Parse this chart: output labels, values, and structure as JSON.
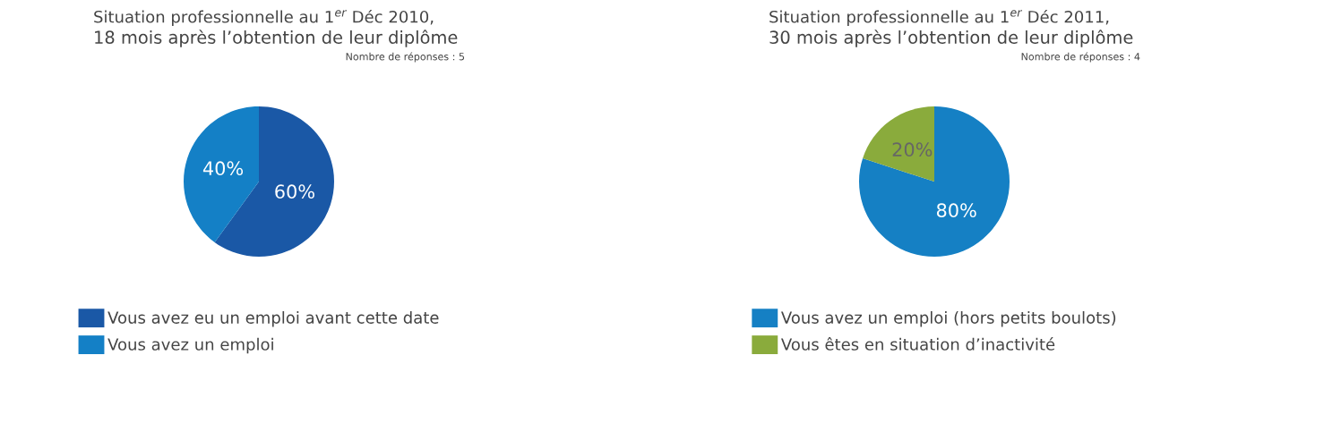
{
  "chart_data": [
    {
      "type": "pie",
      "title": "Situation professionnelle au 1$^{er}$ Déc 2010,",
      "subtitle": "18 mois après l’obtention de leur diplôme",
      "annotations": [
        "Nombre de réponses : 5"
      ],
      "categories": [
        "Vous avez eu un emploi avant cette date",
        "Vous avez un emploi"
      ],
      "values": [
        60,
        40
      ],
      "colors": [
        "#1a58a6",
        "#1480c6"
      ],
      "value_labels": [
        "60%",
        "40%"
      ],
      "legend": "bottom"
    },
    {
      "type": "pie",
      "title": "Situation professionnelle au 1$^{er}$ Déc 2011,",
      "subtitle": "30 mois après l’obtention de leur diplôme",
      "annotations": [
        "Nombre de réponses : 4"
      ],
      "categories": [
        "Vous avez un emploi (hors petits boulots)",
        "Vous êtes en situation d’inactivité"
      ],
      "values": [
        80,
        20
      ],
      "colors": [
        "#1580c4",
        "#8aab3c"
      ],
      "value_labels": [
        "80%",
        "20%"
      ],
      "legend": "bottom"
    }
  ]
}
